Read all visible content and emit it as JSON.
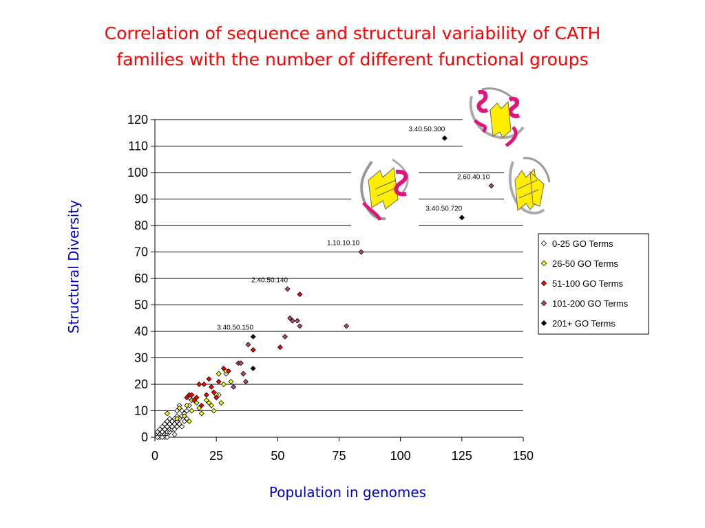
{
  "title_line1": "Correlation of sequence and structural variability of CATH",
  "title_line2": "families with the number of different functional groups",
  "chart_data": {
    "type": "scatter",
    "xlabel": "Population in genomes",
    "ylabel": "Structural Diversity",
    "xlim": [
      0,
      150
    ],
    "ylim": [
      0,
      120
    ],
    "x_ticks": [
      "0",
      "25",
      "50",
      "75",
      "100",
      "125",
      "150"
    ],
    "y_ticks": [
      "0",
      "10",
      "20",
      "30",
      "40",
      "50",
      "60",
      "70",
      "80",
      "90",
      "100",
      "110",
      "120"
    ],
    "grid": "horizontal",
    "legend_position": "right",
    "series": [
      {
        "name": "0-25 GO Terms",
        "color": "#ffffff",
        "points": [
          [
            1,
            1
          ],
          [
            1,
            2
          ],
          [
            2,
            1
          ],
          [
            2,
            3
          ],
          [
            2,
            0
          ],
          [
            3,
            1
          ],
          [
            3,
            2
          ],
          [
            3,
            4
          ],
          [
            4,
            1
          ],
          [
            4,
            3
          ],
          [
            4,
            5
          ],
          [
            5,
            1
          ],
          [
            5,
            2
          ],
          [
            5,
            4
          ],
          [
            5,
            6
          ],
          [
            6,
            2
          ],
          [
            6,
            3
          ],
          [
            6,
            5
          ],
          [
            7,
            3
          ],
          [
            7,
            4
          ],
          [
            7,
            6
          ],
          [
            8,
            3
          ],
          [
            8,
            5
          ],
          [
            8,
            7
          ],
          [
            9,
            4
          ],
          [
            9,
            6
          ],
          [
            9,
            8
          ],
          [
            10,
            5
          ],
          [
            10,
            7
          ],
          [
            10,
            12
          ],
          [
            11,
            4
          ],
          [
            11,
            8
          ],
          [
            12,
            6
          ],
          [
            12,
            9
          ],
          [
            13,
            7
          ],
          [
            13,
            10
          ],
          [
            14,
            12
          ],
          [
            14,
            15
          ],
          [
            11,
            10
          ],
          [
            9,
            10
          ],
          [
            6,
            7
          ],
          [
            4,
            0
          ],
          [
            3,
            0
          ],
          [
            1,
            0
          ],
          [
            5,
            0
          ],
          [
            8,
            1
          ],
          [
            26,
            16
          ],
          [
            29,
            24
          ]
        ]
      },
      {
        "name": "26-50 GO Terms",
        "color": "#ffff00",
        "points": [
          [
            5,
            9
          ],
          [
            9,
            7
          ],
          [
            10,
            11
          ],
          [
            12,
            8
          ],
          [
            13,
            12
          ],
          [
            14,
            6
          ],
          [
            15,
            10
          ],
          [
            15,
            14
          ],
          [
            17,
            13
          ],
          [
            18,
            11
          ],
          [
            19,
            9
          ],
          [
            21,
            14
          ],
          [
            22,
            13
          ],
          [
            23,
            12
          ],
          [
            24,
            10
          ],
          [
            25,
            16
          ],
          [
            26,
            24
          ],
          [
            27,
            13
          ],
          [
            28,
            20
          ],
          [
            29,
            25
          ],
          [
            31,
            21
          ],
          [
            36,
            24
          ]
        ]
      },
      {
        "name": "51-100 GO Terms",
        "color": "#ff0000",
        "points": [
          [
            13,
            15
          ],
          [
            14,
            16
          ],
          [
            15,
            16
          ],
          [
            16,
            14
          ],
          [
            17,
            15
          ],
          [
            18,
            20
          ],
          [
            19,
            12
          ],
          [
            20,
            20
          ],
          [
            21,
            16
          ],
          [
            22,
            22
          ],
          [
            23,
            19
          ],
          [
            24,
            17
          ],
          [
            25,
            15
          ],
          [
            26,
            21
          ],
          [
            28,
            26
          ],
          [
            30,
            25
          ],
          [
            40,
            33
          ],
          [
            51,
            34
          ],
          [
            59,
            54
          ]
        ]
      },
      {
        "name": "101-200 GO Terms",
        "color": "#b84a72",
        "points": [
          [
            32,
            19
          ],
          [
            34,
            28
          ],
          [
            35,
            28
          ],
          [
            36,
            24
          ],
          [
            37,
            21
          ],
          [
            38,
            35
          ],
          [
            53,
            38
          ],
          [
            54,
            56
          ],
          [
            55,
            45
          ],
          [
            56,
            44
          ],
          [
            58,
            44
          ],
          [
            59,
            42
          ],
          [
            78,
            42
          ],
          [
            84,
            70
          ],
          [
            137,
            95
          ]
        ]
      },
      {
        "name": "201+ GO Terms",
        "color": "#000000",
        "points": [
          [
            40,
            26
          ],
          [
            40,
            38
          ],
          [
            118,
            113
          ],
          [
            125,
            83
          ]
        ]
      }
    ],
    "annotations": [
      {
        "text": "3.40.50.300",
        "x": 118,
        "y": 113
      },
      {
        "text": "2.60.40.10",
        "x": 137,
        "y": 95
      },
      {
        "text": "3.40.50.720",
        "x": 125,
        "y": 83
      },
      {
        "text": "1.10.10.10",
        "x": 84,
        "y": 70
      },
      {
        "text": "2.40.50.140",
        "x": 54,
        "y": 56
      },
      {
        "text": "3.40.50.150",
        "x": 40,
        "y": 38
      }
    ]
  }
}
